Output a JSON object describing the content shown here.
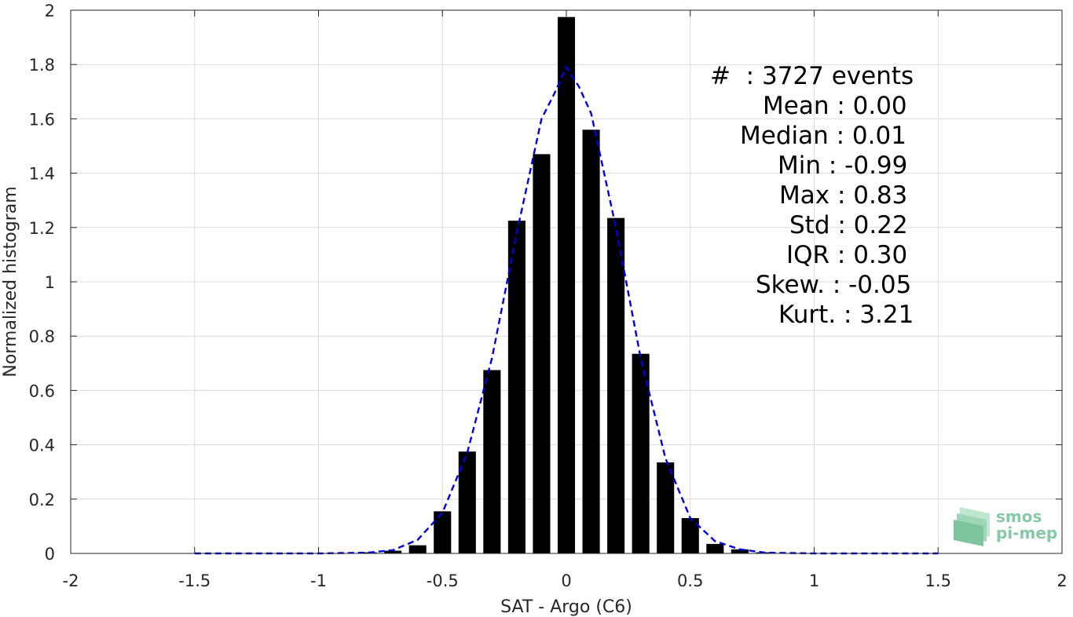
{
  "chart_data": {
    "type": "bar",
    "xlabel": "SAT - Argo (C6)",
    "ylabel": "Normalized histogram",
    "xlim": [
      -2,
      2
    ],
    "ylim": [
      0,
      2
    ],
    "grid": true,
    "xticks": [
      "-2",
      "-1.5",
      "-1",
      "-0.5",
      "0",
      "0.5",
      "1",
      "1.5",
      "2"
    ],
    "yticks": [
      "0",
      "0.2",
      "0.4",
      "0.6",
      "0.8",
      "1",
      "1.2",
      "1.4",
      "1.6",
      "1.8",
      "2"
    ],
    "bar_width": 0.07,
    "bars": {
      "x": [
        -0.8,
        -0.7,
        -0.6,
        -0.5,
        -0.4,
        -0.3,
        -0.2,
        -0.1,
        0.0,
        0.1,
        0.2,
        0.3,
        0.4,
        0.5,
        0.6,
        0.7,
        0.8
      ],
      "values": [
        0.004,
        0.01,
        0.03,
        0.155,
        0.375,
        0.675,
        1.225,
        1.47,
        1.975,
        1.56,
        1.235,
        0.735,
        0.335,
        0.13,
        0.035,
        0.015,
        0.004
      ]
    },
    "fit_curve": {
      "style": "dashed",
      "color": "#0000e0",
      "x": [
        -1.5,
        -1.0,
        -0.8,
        -0.7,
        -0.6,
        -0.5,
        -0.4,
        -0.3,
        -0.2,
        -0.1,
        -0.05,
        0.0,
        0.05,
        0.1,
        0.2,
        0.3,
        0.4,
        0.5,
        0.6,
        0.7,
        0.8,
        1.0,
        1.5
      ],
      "y": [
        0.0,
        0.0,
        0.003,
        0.012,
        0.05,
        0.15,
        0.37,
        0.72,
        1.18,
        1.6,
        1.69,
        1.79,
        1.72,
        1.62,
        1.2,
        0.72,
        0.35,
        0.13,
        0.045,
        0.015,
        0.003,
        0.0,
        0.0
      ]
    },
    "stats": [
      {
        "label": "#  : 3727 events"
      },
      {
        "label": "Mean : 0.00"
      },
      {
        "label": "Median : 0.01"
      },
      {
        "label": "Min : -0.99"
      },
      {
        "label": "Max : 0.83"
      },
      {
        "label": "Std : 0.22"
      },
      {
        "label": "IQR : 0.30"
      },
      {
        "label": "Skew. : -0.05"
      },
      {
        "label": "Kurt. : 3.21"
      }
    ]
  },
  "logo": {
    "line1": "smos",
    "line2": "pi-mep"
  }
}
